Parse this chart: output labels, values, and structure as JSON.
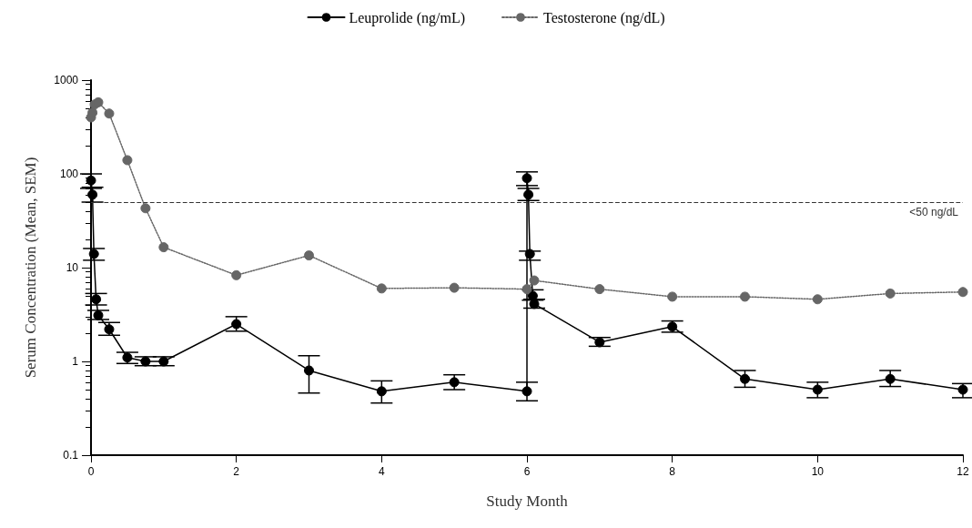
{
  "chart_data": {
    "type": "line",
    "xlabel": "Study Month",
    "ylabel": "Serum Concentration (Mean, SEM)",
    "xlim": [
      0,
      12
    ],
    "xticks": [
      0,
      2,
      4,
      6,
      8,
      10,
      12
    ],
    "ylim": [
      0.1,
      1000
    ],
    "yticks": [
      0.1,
      1,
      10,
      100,
      1000
    ],
    "log": "y",
    "grid": false,
    "legend": "top",
    "marker": "circle",
    "series": [
      {
        "name": "Leuprolide (ng/mL)",
        "color": "#000000",
        "line_style": "solid",
        "x": [
          0,
          0.02,
          0.04,
          0.07,
          0.1,
          0.25,
          0.5,
          0.75,
          1,
          2,
          3,
          4,
          5,
          6,
          6,
          6.02,
          6.04,
          6.06,
          6.08,
          6.1,
          7,
          8,
          9,
          10,
          11,
          12
        ],
        "values": [
          85,
          60,
          14,
          4.6,
          3.1,
          2.2,
          1.1,
          1.0,
          1.0,
          2.5,
          0.8,
          0.48,
          0.6,
          0.48,
          90,
          60,
          14,
          null,
          5,
          4.1,
          1.6,
          2.35,
          0.65,
          0.5,
          0.65,
          0.5
        ],
        "errors": [
          [
            70,
            100
          ],
          [
            50,
            72
          ],
          [
            12,
            16
          ],
          [
            4.0,
            5.3
          ],
          [
            2.8,
            3.5
          ],
          [
            1.9,
            2.6
          ],
          [
            0.95,
            1.25
          ],
          [
            0.9,
            1.12
          ],
          [
            0.9,
            1.12
          ],
          [
            2.1,
            3.0
          ],
          [
            0.46,
            1.15
          ],
          [
            0.36,
            0.62
          ],
          [
            0.5,
            0.72
          ],
          [
            0.38,
            0.6
          ],
          [
            75,
            105
          ],
          [
            52,
            70
          ],
          [
            12,
            15
          ],
          null,
          [
            4.5,
            5.8
          ],
          [
            3.7,
            4.6
          ],
          [
            1.45,
            1.8
          ],
          [
            2.05,
            2.7
          ],
          [
            0.53,
            0.8
          ],
          [
            0.41,
            0.6
          ],
          [
            0.54,
            0.8
          ],
          [
            0.41,
            0.58
          ]
        ]
      },
      {
        "name": "Testosterone (ng/dL)",
        "color": "#666666",
        "line_style": "dotted",
        "x": [
          0,
          0.02,
          0.05,
          0.1,
          0.25,
          0.5,
          0.75,
          1,
          2,
          3,
          4,
          5,
          6,
          6.1,
          7,
          8,
          9,
          10,
          11,
          12
        ],
        "values": [
          400,
          450,
          550,
          580,
          440,
          140,
          43,
          16.5,
          8.3,
          13.5,
          6.0,
          6.1,
          5.9,
          7.3,
          5.9,
          4.9,
          4.9,
          4.6,
          5.3,
          5.5
        ]
      }
    ],
    "ref_lines": [
      {
        "axis": "y",
        "value": 50,
        "label": "<50 ng/dL",
        "line_style": "dashed",
        "color": "#333333"
      }
    ]
  }
}
